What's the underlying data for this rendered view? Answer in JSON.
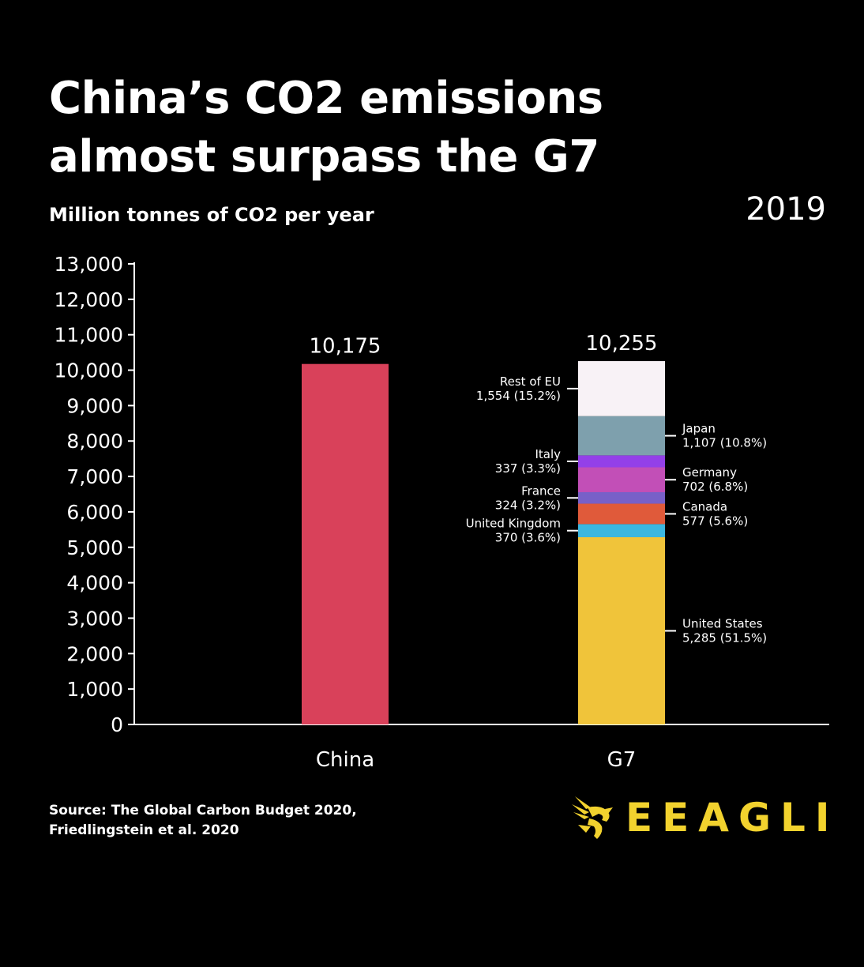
{
  "title": "China’s CO2 emissions almost surpass the G7",
  "subtitle": "Million tonnes of CO2 per year",
  "year": "2019",
  "source": "Source: The Global Carbon Budget 2020, Friedlingstein et al. 2020",
  "logo_text": "EEAGLI",
  "logo_icon": "eagle-icon",
  "chart_data": {
    "type": "bar",
    "stacked": true,
    "categories": [
      "China",
      "G7"
    ],
    "ylim": [
      0,
      13000
    ],
    "yticks": [
      "0",
      "1,000",
      "2,000",
      "3,000",
      "4,000",
      "5,000",
      "6,000",
      "7,000",
      "8,000",
      "9,000",
      "10,000",
      "11,000",
      "12,000",
      "13,000"
    ],
    "totals": [
      {
        "category": "China",
        "value": 10175,
        "label": "10,175"
      },
      {
        "category": "G7",
        "value": 10255,
        "label": "10,255"
      }
    ],
    "series": [
      {
        "category": "China",
        "name": "",
        "value": 10175,
        "color": "#d9415a"
      },
      {
        "category": "G7",
        "name": "United States",
        "value": 5285,
        "label_value": "5,285 (51.5%)",
        "color": "#f0c43a",
        "side": "right"
      },
      {
        "category": "G7",
        "name": "United Kingdom",
        "value": 370,
        "label_value": "370 (3.6%)",
        "color": "#3cb7e0",
        "side": "left"
      },
      {
        "category": "G7",
        "name": "Canada",
        "value": 577,
        "label_value": "577 (5.6%)",
        "color": "#e05a3a",
        "side": "right"
      },
      {
        "category": "G7",
        "name": "France",
        "value": 324,
        "label_value": "324 (3.2%)",
        "color": "#7860c8",
        "side": "left"
      },
      {
        "category": "G7",
        "name": "Germany",
        "value": 702,
        "label_value": "702 (6.8%)",
        "color": "#c24fb7",
        "side": "right"
      },
      {
        "category": "G7",
        "name": "Italy",
        "value": 337,
        "label_value": "337 (3.3%)",
        "color": "#9340e8",
        "side": "left"
      },
      {
        "category": "G7",
        "name": "Japan",
        "value": 1107,
        "label_value": "1,107 (10.8%)",
        "color": "#7ea0ad",
        "side": "right"
      },
      {
        "category": "G7",
        "name": "Rest of EU",
        "value": 1554,
        "label_value": "1,554 (15.2%)",
        "color": "#f8f2f6",
        "side": "left"
      }
    ]
  }
}
